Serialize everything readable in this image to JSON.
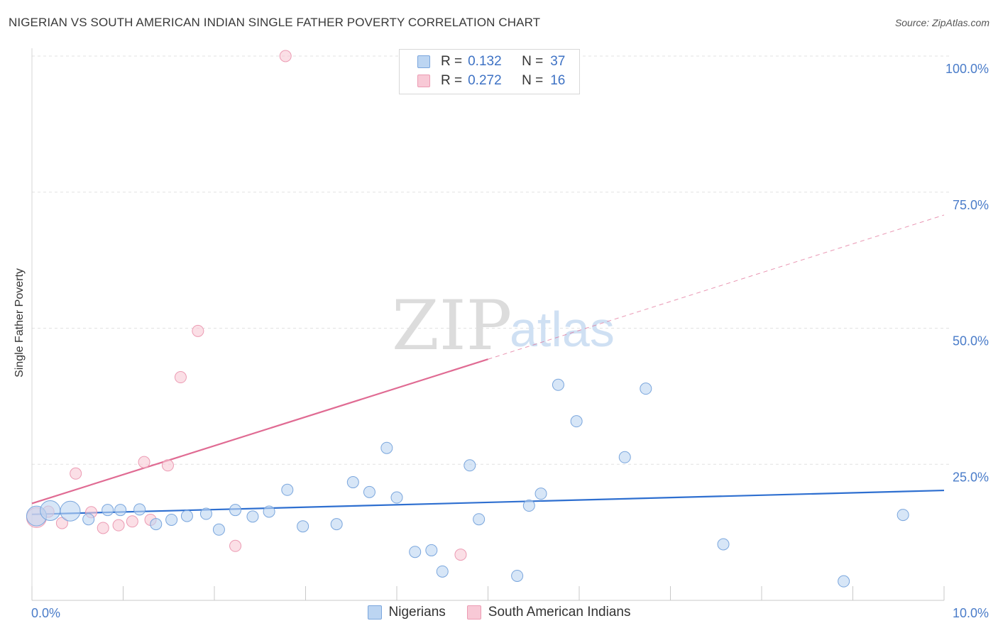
{
  "header": {
    "title": "NIGERIAN VS SOUTH AMERICAN INDIAN SINGLE FATHER POVERTY CORRELATION CHART",
    "source": "Source: ZipAtlas.com"
  },
  "watermark": {
    "zip": "ZIP",
    "atlas": "atlas"
  },
  "stats": {
    "rows": [
      {
        "r_label": "R =",
        "r_value": "0.132",
        "n_label": "N =",
        "n_value": "37"
      },
      {
        "r_label": "R =",
        "r_value": "0.272",
        "n_label": "N =",
        "n_value": "16"
      }
    ]
  },
  "legend": {
    "items": [
      {
        "label": "Nigerians"
      },
      {
        "label": "South American Indians"
      }
    ]
  },
  "colors": {
    "nigerians_fill": "#bcd5f2",
    "nigerians_stroke": "#7aa6dd",
    "nigerians_line": "#2e6fd0",
    "sai_fill": "#f8c9d6",
    "sai_stroke": "#ec9bb3",
    "sai_line": "#e06b93",
    "grid": "#e2e2e2",
    "axis_text": "#4a7cc9"
  },
  "chart_data": {
    "type": "scatter",
    "title": "NIGERIAN VS SOUTH AMERICAN INDIAN SINGLE FATHER POVERTY CORRELATION CHART",
    "xlabel": "",
    "ylabel": "Single Father Poverty",
    "xlim": [
      0,
      10
    ],
    "ylim": [
      0,
      100
    ],
    "x_tick_labels": [
      {
        "value": 0,
        "label": "0.0%"
      },
      {
        "value": 10,
        "label": "10.0%"
      }
    ],
    "y_tick_labels": [
      {
        "value": 25,
        "label": "25.0%"
      },
      {
        "value": 50,
        "label": "50.0%"
      },
      {
        "value": 75,
        "label": "75.0%"
      },
      {
        "value": 100,
        "label": "100.0%"
      }
    ],
    "x_minor_ticks": [
      0,
      1,
      2,
      3,
      4,
      5,
      6,
      7,
      8,
      9,
      10
    ],
    "y_gridlines": [
      25,
      50,
      75,
      100
    ],
    "series": [
      {
        "name": "Nigerians",
        "R": 0.132,
        "N": 37,
        "points": [
          {
            "x": 0.05,
            "y": 15.5,
            "big": true
          },
          {
            "x": 0.2,
            "y": 16.5,
            "big": true
          },
          {
            "x": 0.42,
            "y": 16.4,
            "big": true
          },
          {
            "x": 0.62,
            "y": 14.9
          },
          {
            "x": 0.83,
            "y": 16.6
          },
          {
            "x": 0.97,
            "y": 16.6
          },
          {
            "x": 1.18,
            "y": 16.7
          },
          {
            "x": 1.36,
            "y": 14.0
          },
          {
            "x": 1.53,
            "y": 14.8
          },
          {
            "x": 1.7,
            "y": 15.5
          },
          {
            "x": 1.91,
            "y": 15.9
          },
          {
            "x": 2.05,
            "y": 13.0
          },
          {
            "x": 2.23,
            "y": 16.6
          },
          {
            "x": 2.42,
            "y": 15.4
          },
          {
            "x": 2.6,
            "y": 16.3
          },
          {
            "x": 2.8,
            "y": 20.3
          },
          {
            "x": 2.97,
            "y": 13.6
          },
          {
            "x": 3.34,
            "y": 14.0
          },
          {
            "x": 3.52,
            "y": 21.7
          },
          {
            "x": 3.7,
            "y": 19.9
          },
          {
            "x": 3.89,
            "y": 28.0
          },
          {
            "x": 4.0,
            "y": 18.9
          },
          {
            "x": 4.2,
            "y": 8.9
          },
          {
            "x": 4.38,
            "y": 9.2
          },
          {
            "x": 4.5,
            "y": 5.3
          },
          {
            "x": 4.8,
            "y": 24.8
          },
          {
            "x": 4.9,
            "y": 14.9
          },
          {
            "x": 5.32,
            "y": 4.5
          },
          {
            "x": 5.45,
            "y": 17.4
          },
          {
            "x": 5.58,
            "y": 19.6
          },
          {
            "x": 5.77,
            "y": 39.6
          },
          {
            "x": 5.97,
            "y": 32.9
          },
          {
            "x": 6.5,
            "y": 26.3
          },
          {
            "x": 6.73,
            "y": 38.9
          },
          {
            "x": 7.58,
            "y": 10.3
          },
          {
            "x": 8.9,
            "y": 3.5
          },
          {
            "x": 9.55,
            "y": 15.7
          }
        ],
        "trend": {
          "x0": 0,
          "y0": 15.8,
          "x1": 10,
          "y1": 20.2
        }
      },
      {
        "name": "South American Indians",
        "R": 0.272,
        "N": 16,
        "points": [
          {
            "x": 0.05,
            "y": 15.2,
            "big": true
          },
          {
            "x": 0.18,
            "y": 16.3
          },
          {
            "x": 0.33,
            "y": 14.2
          },
          {
            "x": 0.48,
            "y": 23.3
          },
          {
            "x": 0.65,
            "y": 16.2
          },
          {
            "x": 0.78,
            "y": 13.3
          },
          {
            "x": 0.95,
            "y": 13.8
          },
          {
            "x": 1.1,
            "y": 14.5
          },
          {
            "x": 1.23,
            "y": 25.4
          },
          {
            "x": 1.3,
            "y": 14.8
          },
          {
            "x": 1.49,
            "y": 24.8
          },
          {
            "x": 1.63,
            "y": 41.0
          },
          {
            "x": 1.82,
            "y": 49.5
          },
          {
            "x": 2.23,
            "y": 10.0
          },
          {
            "x": 2.78,
            "y": 100.0
          },
          {
            "x": 4.7,
            "y": 8.4
          }
        ],
        "trend": {
          "x0": 0,
          "y0": 17.8,
          "x1": 5.0,
          "y1": 44.3,
          "dashed_to": {
            "x": 10,
            "y": 70.8
          }
        }
      }
    ]
  }
}
